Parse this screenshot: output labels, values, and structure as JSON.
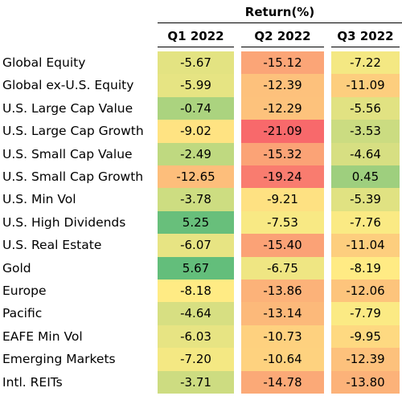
{
  "chart_data": {
    "type": "table",
    "title": "Return(%)",
    "columns": [
      "Q1 2022",
      "Q2 2022",
      "Q3 2022"
    ],
    "rows": [
      {
        "label": "Global Equity",
        "values": [
          "-5.67",
          "-15.12",
          "-7.22"
        ]
      },
      {
        "label": "Global ex-U.S. Equity",
        "values": [
          "-5.99",
          "-12.39",
          "-11.09"
        ]
      },
      {
        "label": "U.S. Large Cap Value",
        "values": [
          "-0.74",
          "-12.29",
          "-5.56"
        ]
      },
      {
        "label": "U.S. Large Cap Growth",
        "values": [
          "-9.02",
          "-21.09",
          "-3.53"
        ]
      },
      {
        "label": "U.S. Small Cap Value",
        "values": [
          "-2.49",
          "-15.32",
          "-4.64"
        ]
      },
      {
        "label": "U.S. Small Cap Growth",
        "values": [
          "-12.65",
          "-19.24",
          "0.45"
        ]
      },
      {
        "label": "U.S. Min Vol",
        "values": [
          "-3.78",
          "-9.21",
          "-5.39"
        ]
      },
      {
        "label": "U.S. High Dividends",
        "values": [
          "5.25",
          "-7.53",
          "-7.76"
        ]
      },
      {
        "label": "U.S. Real Estate",
        "values": [
          "-6.07",
          "-15.40",
          "-11.04"
        ]
      },
      {
        "label": "Gold",
        "values": [
          "5.67",
          "-6.75",
          "-8.19"
        ]
      },
      {
        "label": "Europe",
        "values": [
          "-8.18",
          "-13.86",
          "-12.06"
        ]
      },
      {
        "label": "Pacific",
        "values": [
          "-4.64",
          "-13.14",
          "-7.79"
        ]
      },
      {
        "label": "EAFE Min Vol",
        "values": [
          "-6.03",
          "-10.73",
          "-9.95"
        ]
      },
      {
        "label": "Emerging Markets",
        "values": [
          "-7.20",
          "-10.64",
          "-12.39"
        ]
      },
      {
        "label": "Intl. REITs",
        "values": [
          "-3.71",
          "-14.78",
          "-13.80"
        ]
      }
    ],
    "color_scale": {
      "low": "#f8696b",
      "mid": "#ffeb84",
      "high": "#63be7b"
    }
  }
}
